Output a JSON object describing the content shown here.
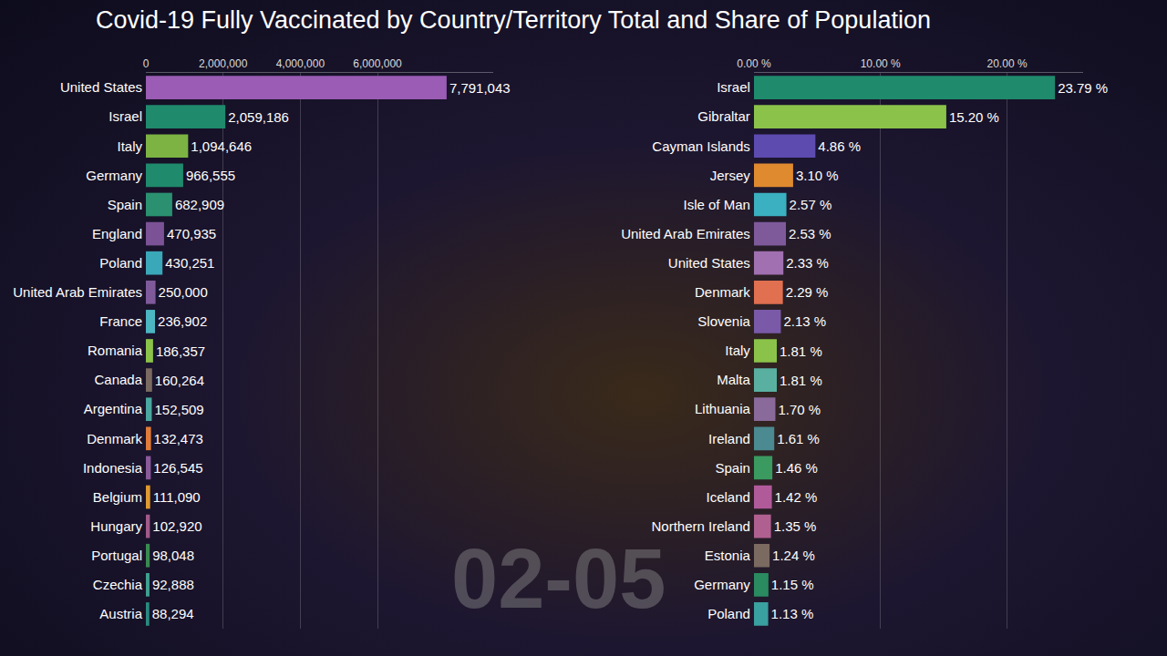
{
  "title": "Covid-19 Fully Vaccinated by Country/Territory Total and Share of Population",
  "annotation": "02-05",
  "chart_data": [
    {
      "type": "bar",
      "orientation": "horizontal",
      "grid": true,
      "data_labels": true,
      "categories": [
        "United States",
        "Israel",
        "Italy",
        "Germany",
        "Spain",
        "England",
        "Poland",
        "United Arab Emirates",
        "France",
        "Romania",
        "Canada",
        "Argentina",
        "Denmark",
        "Indonesia",
        "Belgium",
        "Hungary",
        "Portugal",
        "Czechia",
        "Austria"
      ],
      "values": [
        7791043,
        2059186,
        1094646,
        966555,
        682909,
        470935,
        430251,
        250000,
        236902,
        186357,
        160264,
        152509,
        132473,
        126545,
        111090,
        102920,
        98048,
        92888,
        88294
      ],
      "value_labels": [
        "7,791,043",
        "2,059,186",
        "1,094,646",
        "966,555",
        "682,909",
        "470,935",
        "430,251",
        "250,000",
        "236,902",
        "186,357",
        "160,264",
        "152,509",
        "132,473",
        "126,545",
        "111,090",
        "102,920",
        "98,048",
        "92,888",
        "88,294"
      ],
      "colors": [
        "#9a5cb4",
        "#1f8a6c",
        "#7cb342",
        "#1f8a6c",
        "#2a9070",
        "#7b5296",
        "#3aa8b8",
        "#7e5a9b",
        "#4cb5c2",
        "#8bc34a",
        "#7a6a60",
        "#4aa8a0",
        "#e07b39",
        "#8a5a9b",
        "#e09a30",
        "#a05a8a",
        "#3a8a50",
        "#40a090",
        "#2a8a80"
      ],
      "xlim": [
        0,
        9000000
      ],
      "xticks": [
        0,
        {
          "value": 2000000,
          "label": "2,000,000"
        },
        {
          "value": 4000000,
          "label": "4,000,000"
        },
        {
          "value": 6000000,
          "label": "6,000,000"
        }
      ]
    },
    {
      "type": "bar",
      "orientation": "horizontal",
      "grid": true,
      "data_labels": true,
      "categories": [
        "Israel",
        "Gibraltar",
        "Cayman Islands",
        "Jersey",
        "Isle of Man",
        "United Arab Emirates",
        "United States",
        "Denmark",
        "Slovenia",
        "Italy",
        "Malta",
        "Lithuania",
        "Ireland",
        "Spain",
        "Iceland",
        "Northern Ireland",
        "Estonia",
        "Germany",
        "Poland"
      ],
      "values": [
        23.79,
        15.2,
        4.86,
        3.1,
        2.57,
        2.53,
        2.33,
        2.29,
        2.13,
        1.81,
        1.81,
        1.7,
        1.61,
        1.46,
        1.42,
        1.35,
        1.24,
        1.15,
        1.13
      ],
      "value_labels": [
        "23.79 %",
        "15.20 %",
        "4.86 %",
        "3.10 %",
        "2.57 %",
        "2.53 %",
        "2.33 %",
        "2.29 %",
        "2.13 %",
        "1.81 %",
        "1.81 %",
        "1.70 %",
        "1.61 %",
        "1.46 %",
        "1.42 %",
        "1.35 %",
        "1.24 %",
        "1.15 %",
        "1.13 %"
      ],
      "colors": [
        "#1f8a6c",
        "#8bc34a",
        "#5e4bb0",
        "#e08a30",
        "#3ab0c0",
        "#7e5a9b",
        "#a070b0",
        "#e07050",
        "#7a5aa8",
        "#8bc34a",
        "#5ab0a0",
        "#8a6a9a",
        "#4a8a90",
        "#3a9a60",
        "#b05a9a",
        "#b06090",
        "#7a6a60",
        "#2a8a60",
        "#3aa0a0"
      ],
      "xlim": [
        0,
        26
      ],
      "xticks": [
        {
          "value": 0,
          "label": "0.00 %"
        },
        {
          "value": 10,
          "label": "10.00 %"
        },
        {
          "value": 20,
          "label": "20.00 %"
        }
      ]
    }
  ]
}
